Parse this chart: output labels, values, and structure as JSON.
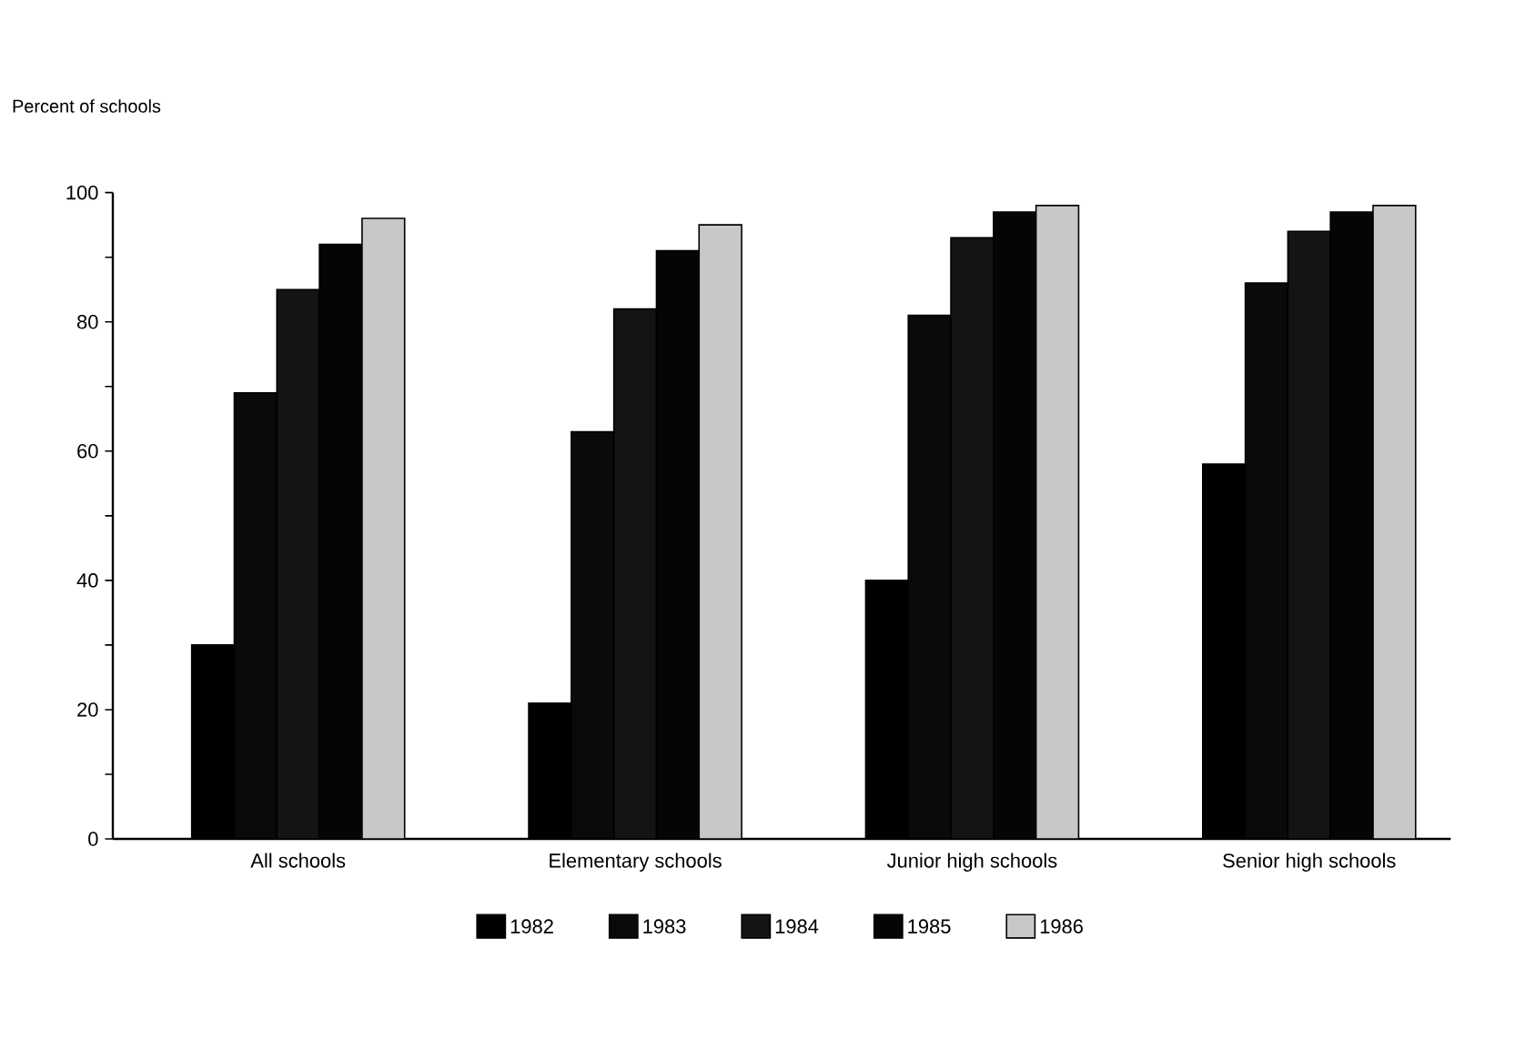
{
  "chart_data": {
    "type": "bar",
    "ylabel": "Percent of schools",
    "categories": [
      "All schools",
      "Elementary schools",
      "Junior high schools",
      "Senior high schools"
    ],
    "series": [
      {
        "name": "1982",
        "color": "#000000",
        "values": [
          30,
          21,
          40,
          58
        ]
      },
      {
        "name": "1983",
        "color": "#0a0a0a",
        "values": [
          69,
          63,
          81,
          86
        ]
      },
      {
        "name": "1984",
        "color": "#141414",
        "values": [
          85,
          82,
          93,
          94
        ]
      },
      {
        "name": "1985",
        "color": "#050505",
        "values": [
          92,
          91,
          97,
          97
        ]
      },
      {
        "name": "1986",
        "color": "#c8c8c8",
        "values": [
          96,
          95,
          98,
          98
        ]
      }
    ],
    "ylim": [
      0,
      100
    ],
    "yticks": [
      0,
      {
        "value": 10,
        "label": null
      },
      20,
      {
        "value": 30,
        "label": null
      },
      40,
      {
        "value": 50,
        "label": null
      },
      60,
      {
        "value": 70,
        "label": null
      },
      80,
      {
        "value": 90,
        "label": null
      },
      100
    ],
    "grid": false,
    "legend": "bottom"
  }
}
